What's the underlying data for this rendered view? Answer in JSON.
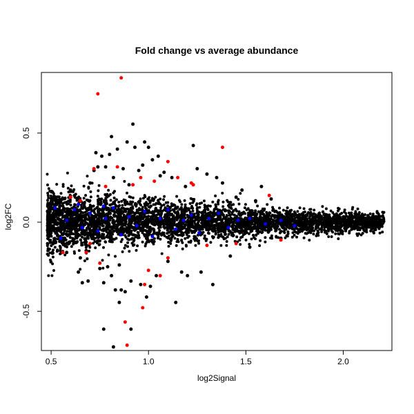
{
  "chart_data": {
    "type": "scatter",
    "title": "Fold change vs average abundance",
    "xlabel": "log2Signal",
    "ylabel": "log2FC",
    "xlim": [
      0.45,
      2.25
    ],
    "ylim": [
      -0.72,
      0.84
    ],
    "x_ticks": [
      0.5,
      1.0,
      1.5,
      2.0
    ],
    "x_tick_labels": [
      "0.5",
      "1.0",
      "1.5",
      "2.0"
    ],
    "y_ticks": [
      -0.5,
      0.0,
      0.5
    ],
    "y_tick_labels": [
      "-0.5",
      "0.0",
      "0.5"
    ],
    "grid": false,
    "legend": "none",
    "colors": {
      "background": "#000000",
      "highlight_red": "#ff0000",
      "highlight_blue": "#0000ff",
      "frame": "#000000"
    },
    "series": [
      {
        "color": "#000000",
        "description_points": [
          [
            0.55,
            0.12
          ],
          [
            0.58,
            -0.17
          ],
          [
            0.62,
            0.15
          ],
          [
            0.65,
            -0.2
          ],
          [
            0.66,
            -0.34
          ],
          [
            0.68,
            -0.16
          ],
          [
            0.69,
            -0.33
          ],
          [
            0.7,
            0.22
          ],
          [
            0.72,
            0.29
          ],
          [
            0.73,
            0.39
          ],
          [
            0.74,
            0.31
          ],
          [
            0.75,
            -0.26
          ],
          [
            0.76,
            0.37
          ],
          [
            0.77,
            -0.34
          ],
          [
            0.78,
            0.31
          ],
          [
            0.79,
            -0.25
          ],
          [
            0.8,
            0.38
          ],
          [
            0.81,
            0.48
          ],
          [
            0.81,
            -0.3
          ],
          [
            0.82,
            0.25
          ],
          [
            0.83,
            -0.38
          ],
          [
            0.84,
            0.41
          ],
          [
            0.85,
            -0.24
          ],
          [
            0.85,
            -0.45
          ],
          [
            0.86,
            -0.38
          ],
          [
            0.87,
            0.3
          ],
          [
            0.88,
            -0.39
          ],
          [
            0.89,
            0.45
          ],
          [
            0.9,
            0.21
          ],
          [
            0.91,
            -0.33
          ],
          [
            0.92,
            0.55
          ],
          [
            0.93,
            0.42
          ],
          [
            0.95,
            0.29
          ],
          [
            0.96,
            -0.35
          ],
          [
            0.97,
            0.32
          ],
          [
            0.98,
            0.45
          ],
          [
            0.99,
            -0.42
          ],
          [
            1.0,
            0.42
          ],
          [
            1.01,
            -0.36
          ],
          [
            1.02,
            0.35
          ],
          [
            1.04,
            -0.3
          ],
          [
            1.05,
            0.37
          ],
          [
            1.06,
            0.26
          ],
          [
            1.08,
            0.28
          ],
          [
            1.1,
            -0.22
          ],
          [
            1.12,
            0.25
          ],
          [
            1.14,
            -0.45
          ],
          [
            1.17,
            -0.28
          ],
          [
            1.19,
            0.2
          ],
          [
            1.23,
            0.43
          ],
          [
            1.27,
            -0.28
          ],
          [
            1.3,
            0.27
          ],
          [
            1.33,
            -0.35
          ],
          [
            1.38,
            0.22
          ],
          [
            1.42,
            -0.19
          ],
          [
            1.48,
            0.18
          ],
          [
            1.52,
            -0.14
          ],
          [
            1.58,
            0.2
          ],
          [
            1.63,
            0.13
          ],
          [
            1.68,
            -0.09
          ],
          [
            0.77,
            -0.6
          ],
          [
            0.82,
            -0.7
          ],
          [
            0.91,
            -0.6
          ],
          [
            0.6,
            0.18
          ],
          [
            0.64,
            -0.28
          ],
          [
            1.2,
            -0.3
          ],
          [
            1.25,
            0.3
          ],
          [
            1.35,
            0.25
          ],
          [
            1.45,
            0.14
          ],
          [
            1.55,
            0.12
          ]
        ]
      },
      {
        "color": "#ff0000",
        "description_points": [
          [
            0.74,
            0.72
          ],
          [
            0.86,
            0.81
          ],
          [
            1.38,
            0.42
          ],
          [
            0.72,
            0.3
          ],
          [
            0.84,
            0.31
          ],
          [
            0.96,
            0.25
          ],
          [
            1.1,
            0.34
          ],
          [
            1.23,
            0.21
          ],
          [
            1.62,
            0.15
          ],
          [
            0.88,
            -0.56
          ],
          [
            0.89,
            -0.69
          ],
          [
            0.97,
            -0.48
          ],
          [
            0.98,
            -0.35
          ],
          [
            1.06,
            -0.3
          ],
          [
            0.75,
            -0.23
          ],
          [
            0.68,
            -0.17
          ],
          [
            1.0,
            -0.27
          ],
          [
            0.6,
            0.14
          ],
          [
            1.22,
            0.22
          ],
          [
            0.78,
            0.2
          ],
          [
            0.92,
            0.21
          ],
          [
            1.03,
            0.23
          ],
          [
            1.15,
            0.25
          ],
          [
            0.65,
            0.12
          ],
          [
            1.1,
            -0.2
          ],
          [
            0.7,
            -0.12
          ],
          [
            1.3,
            -0.13
          ],
          [
            1.45,
            -0.12
          ],
          [
            1.68,
            -0.1
          ],
          [
            0.56,
            -0.17
          ]
        ]
      },
      {
        "color": "#0000ff",
        "description_points": [
          [
            0.52,
            0.08
          ],
          [
            0.58,
            0.01
          ],
          [
            0.62,
            0.07
          ],
          [
            0.66,
            -0.03
          ],
          [
            0.7,
            0.05
          ],
          [
            0.74,
            -0.05
          ],
          [
            0.78,
            0.02
          ],
          [
            0.82,
            0.08
          ],
          [
            0.86,
            -0.07
          ],
          [
            0.9,
            0.03
          ],
          [
            0.94,
            -0.02
          ],
          [
            0.98,
            0.06
          ],
          [
            1.02,
            -0.08
          ],
          [
            1.06,
            0.02
          ],
          [
            1.1,
            0.07
          ],
          [
            1.14,
            -0.04
          ],
          [
            1.18,
            0.01
          ],
          [
            1.22,
            0.04
          ],
          [
            1.26,
            -0.06
          ],
          [
            1.31,
            0.02
          ],
          [
            1.36,
            0.05
          ],
          [
            1.41,
            -0.03
          ],
          [
            1.46,
            0.01
          ],
          [
            1.52,
            0.02
          ],
          [
            1.6,
            -0.01
          ],
          [
            1.68,
            0.01
          ],
          [
            1.75,
            -0.02
          ],
          [
            0.55,
            -0.09
          ],
          [
            0.64,
            0.1
          ],
          [
            0.77,
            0.09
          ]
        ]
      }
    ]
  }
}
